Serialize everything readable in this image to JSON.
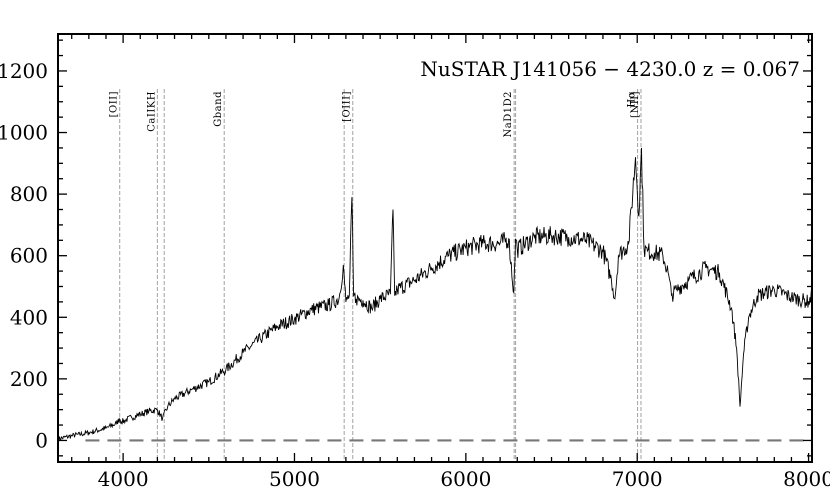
{
  "chart_data": {
    "type": "line",
    "title": "NuSTAR J141056 − 4230.0    z = 0.067",
    "xlabel": "",
    "ylabel": "",
    "xlim": [
      3620,
      8020
    ],
    "ylim": [
      -70,
      1320
    ],
    "xticks": [
      4000,
      5000,
      6000,
      7000,
      8000
    ],
    "xtick_labels": [
      "4000",
      "5000",
      "6000",
      "7000",
      "8000"
    ],
    "yticks": [
      0,
      200,
      400,
      600,
      800,
      1000,
      1200
    ],
    "ytick_labels": [
      "0",
      "200",
      "400",
      "600",
      "800",
      "1000",
      "1200"
    ],
    "grid": false,
    "legend": "none",
    "zero_line": 0,
    "series": [
      {
        "x": [
          3620,
          3700,
          3800,
          3900,
          3960,
          3980,
          3990,
          4050,
          4100,
          4150,
          4200,
          4230,
          4260,
          4300,
          4400,
          4500,
          4600,
          4700,
          4800,
          4900,
          5000,
          5100,
          5200,
          5260,
          5285,
          5300,
          5320,
          5335,
          5345,
          5360,
          5400,
          5450,
          5500,
          5560,
          5575,
          5585,
          5600,
          5700,
          5800,
          5900,
          6000,
          6100,
          6200,
          6250,
          6280,
          6290,
          6300,
          6400,
          6500,
          6600,
          6700,
          6800,
          6850,
          6870,
          6890,
          6950,
          6990,
          7010,
          7025,
          7040,
          7060,
          7100,
          7150,
          7180,
          7200,
          7230,
          7300,
          7400,
          7480,
          7550,
          7580,
          7600,
          7620,
          7650,
          7700,
          7800,
          7900,
          8000,
          8020
        ],
        "values": [
          5,
          15,
          25,
          40,
          55,
          70,
          60,
          75,
          85,
          95,
          100,
          70,
          110,
          135,
          165,
          190,
          230,
          285,
          330,
          370,
          395,
          425,
          440,
          460,
          570,
          450,
          470,
          790,
          470,
          460,
          455,
          430,
          460,
          475,
          750,
          470,
          490,
          520,
          560,
          600,
          625,
          640,
          640,
          655,
          480,
          655,
          620,
          660,
          665,
          660,
          650,
          615,
          520,
          460,
          600,
          640,
          920,
          730,
          950,
          620,
          615,
          610,
          600,
          545,
          470,
          490,
          520,
          560,
          545,
          430,
          300,
          110,
          280,
          400,
          470,
          490,
          465,
          450,
          470
        ]
      }
    ],
    "annotations": [
      {
        "x": 3980,
        "label": "[OII]"
      },
      {
        "x": 4200,
        "label": "CaIIKH"
      },
      {
        "x": 4240,
        "label": ""
      },
      {
        "x": 4590,
        "label": "Gband"
      },
      {
        "x": 5290,
        "label": ""
      },
      {
        "x": 5340,
        "label": "[OIII]"
      },
      {
        "x": 6282,
        "label": "NaD1D2"
      },
      {
        "x": 6290,
        "label": ""
      },
      {
        "x": 7002,
        "label": "Hα"
      },
      {
        "x": 7022,
        "label": "[NII]"
      }
    ],
    "colors": {
      "spectrum": "#000000",
      "marker": "#aaaaaa",
      "zero": "#777777"
    }
  }
}
